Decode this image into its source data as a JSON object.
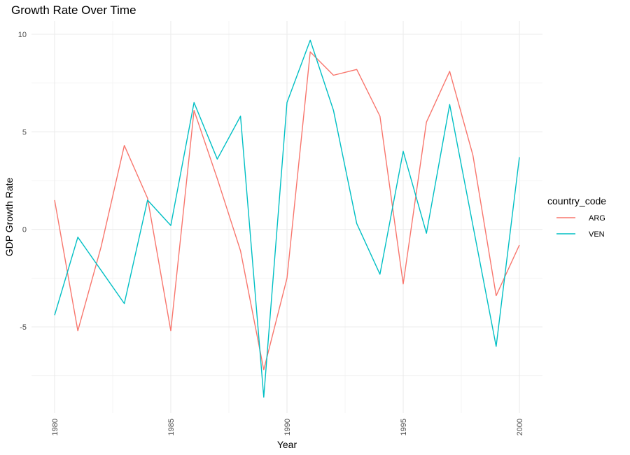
{
  "chart_data": {
    "type": "line",
    "title": "Growth Rate Over Time",
    "xlabel": "Year",
    "ylabel": "GDP Growth Rate",
    "xlim": [
      1980,
      2000
    ],
    "ylim": [
      -9,
      10.5
    ],
    "x_ticks": [
      1980,
      1985,
      1990,
      1995,
      2000
    ],
    "y_ticks": [
      10,
      5,
      0,
      -5
    ],
    "y_tick_labels": [
      "10",
      "5",
      "0",
      "-5"
    ],
    "grid": true,
    "legend": {
      "title": "country_code",
      "position": "right"
    },
    "x": [
      1980,
      1981,
      1982,
      1983,
      1984,
      1985,
      1986,
      1987,
      1988,
      1989,
      1990,
      1991,
      1992,
      1993,
      1994,
      1995,
      1996,
      1997,
      1998,
      1999,
      2000
    ],
    "series": [
      {
        "name": "ARG",
        "color": "#F8766D",
        "values": [
          1.5,
          -5.2,
          -0.9,
          4.3,
          1.6,
          -5.2,
          6.1,
          2.6,
          -1.1,
          -7.2,
          -2.5,
          9.1,
          7.9,
          8.2,
          5.8,
          -2.8,
          5.5,
          8.1,
          3.8,
          -3.4,
          -0.8
        ]
      },
      {
        "name": "VEN",
        "color": "#00BFC4",
        "values": [
          -4.4,
          -0.4,
          -2.1,
          -3.8,
          1.5,
          0.2,
          6.5,
          3.6,
          5.8,
          -8.6,
          6.5,
          9.7,
          6.1,
          0.3,
          -2.3,
          4.0,
          -0.2,
          6.4,
          0.2,
          -6.0,
          3.7
        ]
      }
    ]
  }
}
